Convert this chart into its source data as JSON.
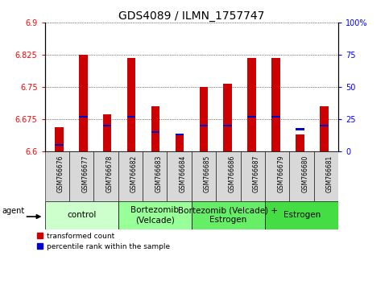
{
  "title": "GDS4089 / ILMN_1757747",
  "samples": [
    "GSM766676",
    "GSM766677",
    "GSM766678",
    "GSM766682",
    "GSM766683",
    "GSM766684",
    "GSM766685",
    "GSM766686",
    "GSM766687",
    "GSM766679",
    "GSM766680",
    "GSM766681"
  ],
  "transformed_counts": [
    6.655,
    6.826,
    6.685,
    6.818,
    6.705,
    6.638,
    6.75,
    6.758,
    6.818,
    6.818,
    6.638,
    6.705
  ],
  "percentile_ranks": [
    5,
    27,
    20,
    27,
    15,
    13,
    20,
    20,
    27,
    27,
    17,
    20
  ],
  "ymin": 6.6,
  "ymax": 6.9,
  "yticks": [
    6.6,
    6.675,
    6.75,
    6.825,
    6.9
  ],
  "ytick_labels": [
    "6.6",
    "6.675",
    "6.75",
    "6.825",
    "6.9"
  ],
  "right_yticks": [
    0,
    25,
    50,
    75,
    100
  ],
  "right_ytick_labels": [
    "0",
    "25",
    "50",
    "75",
    "100%"
  ],
  "bar_color": "#cc0000",
  "percentile_color": "#0000cc",
  "groups": [
    {
      "label": "control",
      "start": 0,
      "end": 3,
      "color": "#ccffcc"
    },
    {
      "label": "Bortezomib\n(Velcade)",
      "start": 3,
      "end": 6,
      "color": "#99ff99"
    },
    {
      "label": "Bortezomib (Velcade) +\nEstrogen",
      "start": 6,
      "end": 9,
      "color": "#66ee66"
    },
    {
      "label": "Estrogen",
      "start": 9,
      "end": 12,
      "color": "#44dd44"
    }
  ],
  "agent_label": "agent",
  "legend_red_label": "transformed count",
  "legend_blue_label": "percentile rank within the sample",
  "bar_width": 0.35,
  "tick_label_fontsize": 7,
  "title_fontsize": 10,
  "group_label_fontsize": 7.5,
  "axis_fontsize": 7
}
